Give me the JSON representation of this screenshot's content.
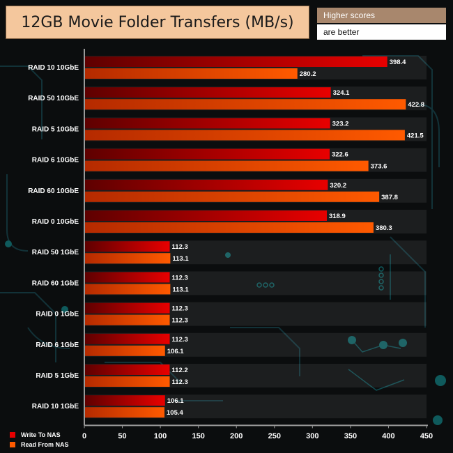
{
  "header": {
    "title": "12GB Movie Folder Transfers (MB/s)",
    "hint_line1": "Higher scores",
    "hint_line2": "are better"
  },
  "colors": {
    "write_series": "#e80000",
    "read_series": "#ff5a00",
    "title_bg": "#f4c79d",
    "hint_bg": "#a8876d",
    "axis": "#9a9a9a"
  },
  "chart_data": {
    "type": "bar",
    "orientation": "horizontal",
    "title": "12GB Movie Folder Transfers (MB/s)",
    "categories": [
      "RAID 10 10GbE",
      "RAID 50 10GbE",
      "RAID 5 10GbE",
      "RAID 6 10GbE",
      "RAID 60 10GbE",
      "RAID 0 10GbE",
      "RAID 50 1GbE",
      "RAID 60 1GbE",
      "RAID 0 1GbE",
      "RAID 6 1GbE",
      "RAID 5 1GbE",
      "RAID 10 1GbE"
    ],
    "series": [
      {
        "name": "Write To NAS",
        "values": [
          398.4,
          324.1,
          323.2,
          322.6,
          320.2,
          318.9,
          112.3,
          112.3,
          112.3,
          112.3,
          112.2,
          106.1
        ]
      },
      {
        "name": "Read From NAS",
        "values": [
          280.2,
          422.8,
          421.5,
          373.6,
          387.8,
          380.3,
          113.1,
          113.1,
          112.3,
          106.1,
          112.3,
          105.4
        ]
      }
    ],
    "xlim": [
      0,
      450
    ],
    "xticks": [
      "0",
      "50",
      "100",
      "150",
      "200",
      "250",
      "300",
      "350",
      "400",
      "450"
    ],
    "xlabel": "",
    "ylabel": "",
    "legend_position": "bottom-left",
    "data_labels": true
  }
}
